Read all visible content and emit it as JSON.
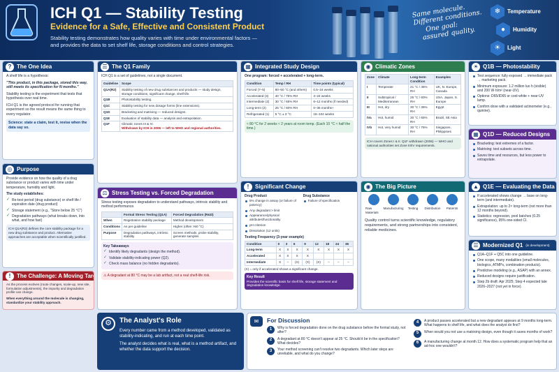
{
  "header": {
    "title": "ICH Q1 — Stability Testing",
    "subtitle": "Evidence for a Safe, Effective and Consistent Product",
    "desc1": "Stability testing demonstrates how quality varies with time under environmental factors —",
    "desc2": "and provides the data to set shelf life, storage conditions and control strategies.",
    "script": [
      "Same molecule.",
      "Different conditions.",
      "One goal:",
      "assured quality."
    ],
    "factors": [
      {
        "icon": "snowflake-icon",
        "label": "Temperature"
      },
      {
        "icon": "drop-icon",
        "label": "Humidity"
      },
      {
        "icon": "sun-icon",
        "label": "Light"
      }
    ]
  },
  "one_idea": {
    "title": "The One Idea",
    "intro": "A shelf life is a hypothesis:",
    "quote": "\"This product, in this package, stored this way, still meets its specification for N months.\"",
    "p1": "Stability testing is the experiment that tests that hypothesis over real time.",
    "p2": "ICH Q1 is the agreed protocol for running that experiment so the result means the same thing to every regulator.",
    "science": "Science: state a claim, test it, revise when the data say so."
  },
  "purpose": {
    "title": "Purpose",
    "p1": "Provide evidence on how the quality of a drug substance or product varies with time under temperature, humidity and light.",
    "establishes": "The study establishes:",
    "items": [
      "Re-test period (drug substance) or shelf life / expiration date (drug product)",
      "Storage statement (e.g., \"Store below 25 °C\")",
      "Degradation pathways (what breaks down, into what, and how fast)"
    ],
    "box": "ICH Q1A(R2) defines the core stability package for a new drug substance and product. Alternative approaches are acceptable when scientifically justified."
  },
  "challenge": {
    "title": "The Challenge: A Moving Target",
    "p1": "As the process evolves (route changes, scale-up, new site, formulation adjustments), the impurity and degradation profile can change.",
    "p2": "When everything around the molecule is changing, standardize your stability approach."
  },
  "family": {
    "title": "The Q1 Family",
    "intro": "ICH Q1 is a set of guidelines, not a single document.",
    "head": [
      "Guideline",
      "Scope"
    ],
    "rows": [
      [
        "Q1A(R2)",
        "Stability testing of new drug substances and products — study design, storage conditions, significant change, shelf-life."
      ],
      [
        "Q1B",
        "Photostability testing."
      ],
      [
        "Q1C",
        "Stability testing for new dosage forms (line extensions)."
      ],
      [
        "Q1D",
        "Bracketing and matrixing — reduced designs."
      ],
      [
        "Q1E",
        "Evaluation of stability data — analysis and extrapolation."
      ],
      [
        "Q1F",
        "Climatic zones III & IV."
      ]
    ],
    "q1f_note": "Withdrawn by ICH in 2006 — left to WHO and regional authorities."
  },
  "stress": {
    "title": "Stress Testing vs. Forced Degradation",
    "intro": "Stress testing exposes degradation to understand pathways, intrinsic stability and method performance.",
    "head": [
      "",
      "Formal Stress Testing (Q1A)",
      "Forced Degradation (R&D)"
    ],
    "rows": [
      [
        "When",
        "Registration stability package",
        "Method development"
      ],
      [
        "Conditions",
        "As per guideline",
        "Higher (often >50 °C)"
      ],
      [
        "Purpose",
        "Degradation pathways, intrinsic stability",
        "Screen methods, probe stability, generate samples"
      ]
    ],
    "takeaways_title": "Key Takeaways",
    "takeaways": [
      "Identify likely degradants (design the method).",
      "Validate stability-indicating power (Q2).",
      "Check mass balance (no hidden degradants)."
    ],
    "warning": "A degradant at 80 °C may be a lab artifact, not a real shelf-life risk."
  },
  "design": {
    "title": "Integrated Study Design",
    "intro": "One program: forced + accelerated + long-term.",
    "head": [
      "Condition",
      "Temp / RH",
      "Time points (typical)"
    ],
    "rows": [
      [
        "Forced (7–5)",
        "80–50 °C (and others)",
        "0.5–16 weeks"
      ],
      [
        "Accelerated (3)",
        "40 °C / 75% RH",
        "4–24 weeks"
      ],
      [
        "Intermediate (2)",
        "30 °C / 65% RH",
        "6–12 months (if needed)"
      ],
      [
        "Long-term (2)",
        "25 °C / 60% RH",
        "0–36 months+"
      ],
      [
        "Refrigerated (1)",
        "5 °C ± 3 °C",
        "16–104 weeks"
      ]
    ],
    "note": "≈ 80 °C for 2 weeks ≈ 2 years at room temp. (Each 10 °C ≈ half the time.)"
  },
  "significant": {
    "title": "Significant Change",
    "dp_title": "Drug Product",
    "dp": [
      "5% change in assay (or failure of potency)",
      "Any degradant > limit",
      "Appearance/physical attributes/functionality",
      "pH criterion",
      "Dissolution (12 units)"
    ],
    "ds_title": "Drug Substance",
    "ds": [
      "Failure of specification"
    ],
    "freq_title": "Testing Frequency (3-year example)",
    "freq_head": [
      "Condition",
      "0",
      "3",
      "6",
      "9",
      "12",
      "18",
      "24",
      "36"
    ],
    "freq_rows": [
      [
        "Long-term",
        "X",
        "X",
        "X",
        "X",
        "X",
        "X",
        "X",
        "X"
      ],
      [
        "Accelerated",
        "X",
        "X",
        "X",
        "X",
        "",
        "",
        "",
        ""
      ],
      [
        "Intermediate",
        "X",
        "–",
        "(X)",
        "(X)",
        "(X)",
        "–",
        "–",
        "–"
      ]
    ],
    "freq_note": "(X) = only if accelerated shows a significant change.",
    "result_title": "Key Result",
    "result": "Provides the scientific basis for shelf life, storage statement and degradation knowledge."
  },
  "climatic": {
    "title": "Climatic Zones",
    "head": [
      "Zone",
      "Climate",
      "Long-term Condition",
      "Examples"
    ],
    "rows": [
      [
        "I",
        "Temperate",
        "21 °C / 45% RH",
        "UK, N. Europe, Canada"
      ],
      [
        "II",
        "Subtropical / Mediterranean",
        "25 °C / 60% RH",
        "USA, Japan, S. Europe"
      ],
      [
        "III",
        "Hot, dry",
        "30 °C / 35% RH",
        "Egypt"
      ],
      [
        "IVa",
        "Hot, humid",
        "30 °C / 65% RH",
        "Brazil, SE Asia"
      ],
      [
        "IVb",
        "Hot, very humid",
        "30 °C / 75% RH",
        "Singapore, Philippines"
      ]
    ],
    "note": "ICH covers Zones I & II. Q1F withdrawn (2006) — WHO and national authorities set Zone III/IV requirements."
  },
  "big_picture": {
    "title": "The Big Picture",
    "steps": [
      "Raw Materials",
      "Manufacturing",
      "Testing",
      "Distribution",
      "Patients"
    ],
    "text": "Quality control turns scientific knowledge, regulatory requirements, and strong partnerships into consistent, reliable medicines."
  },
  "q1b": {
    "title": "Q1B — Photostability",
    "items": [
      "Test sequence: fully exposed → immediate pack → marketing pack.",
      "Minimum exposure: 1.2 million lux·h (visible) and 200 W·h/m² (near-UV).",
      "Options: D65/ID65 or cool-white + near-UV lamp.",
      "Confirm dose with a validated actinometer (e.g., quinine)."
    ]
  },
  "q1d": {
    "title": "Q1D — Reduced Designs",
    "items": [
      "Bracketing: test extremes of a factor.",
      "Matrixing: test subsets across time.",
      "Saves time and resources, but less power to extrapolate."
    ]
  },
  "q1e": {
    "title": "Q1E — Evaluating the Data",
    "items": [
      "If accelerated shows change → base on long-term (and intermediate).",
      "Extrapolation: up to 2× long-term (not more than 12 months beyond).",
      "Statistics: regression, pool batches (0.25 significance), 95% one-sided CI."
    ]
  },
  "modern": {
    "title": "Modernized Q1",
    "tag": "(in development)",
    "items": [
      "Q1A–Q1F + Q5C into one guideline.",
      "One scope, many modalities (small molecules, biologics, ATMPs, combination products).",
      "Predictive modeling (e.g., ASAP) with an annex.",
      "Reduced designs require justification.",
      "Step 2b draft: Apr 2025; Step 4 expected late 2026–2027 (not yet in force)."
    ]
  },
  "analyst": {
    "title": "The Analyst's Role",
    "p1": "Every number came from a method developed, validated as stability-indicating, and run at each time point.",
    "p2": "The analyst decides what is real, what is a method artifact, and whether the data support the decision."
  },
  "discussion": {
    "title": "For Discussion",
    "questions": [
      "Why is forced degradation done on the drug substance before the formal study, not after?",
      "A degradant at 80 °C doesn't appear at 25 °C. Should it be in the specification? What decides?",
      "Your method screening can't resolve two degradants. Which later steps are unreliable, and what do you change?",
      "A product passes accelerated but a new degradant appears at 9 months long-term. What happens to shelf life, and what does the analyst do first?",
      "When would you not use a matrixing design, even though it saves months of work?",
      "A manufacturing change at month 12. How does a systematic program help that an ad-hoc one wouldn't?"
    ]
  }
}
